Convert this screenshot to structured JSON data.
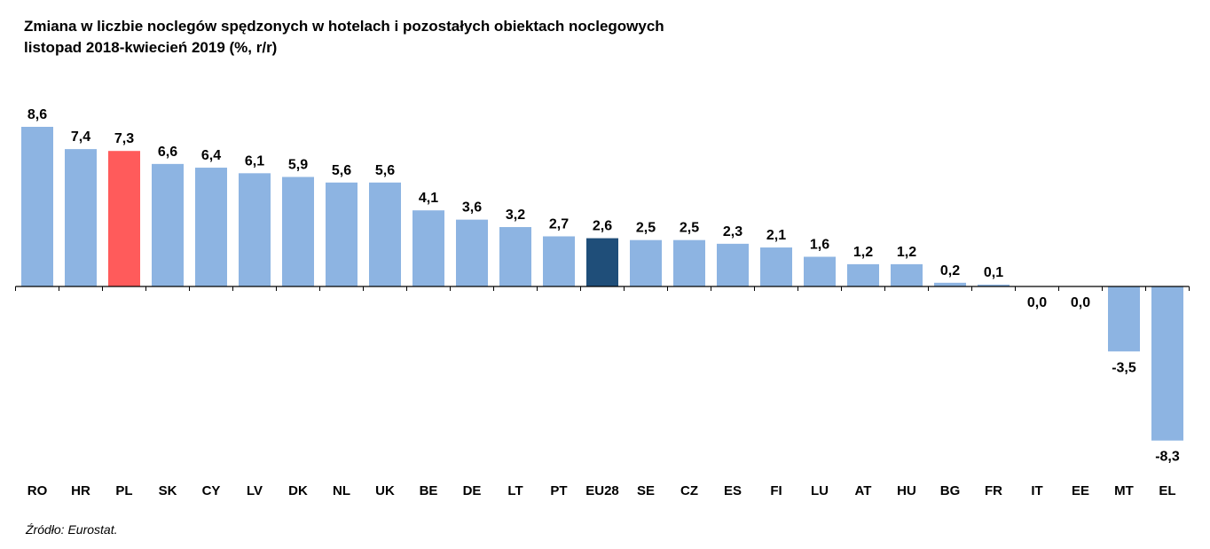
{
  "chart_data": {
    "type": "bar",
    "title": "Zmiana w liczbie noclegów spędzonych w hotelach i pozostałych obiektach noclegowych",
    "subtitle": "listopad 2018-kwiecień 2019 (%, r/r)",
    "categories": [
      "RO",
      "HR",
      "PL",
      "SK",
      "CY",
      "LV",
      "DK",
      "NL",
      "UK",
      "BE",
      "DE",
      "LT",
      "PT",
      "EU28",
      "SE",
      "CZ",
      "ES",
      "FI",
      "LU",
      "AT",
      "HU",
      "BG",
      "FR",
      "IT",
      "EE",
      "MT",
      "EL"
    ],
    "values": [
      8.6,
      7.4,
      7.3,
      6.6,
      6.4,
      6.1,
      5.9,
      5.6,
      5.6,
      4.1,
      3.6,
      3.2,
      2.7,
      2.6,
      2.5,
      2.5,
      2.3,
      2.1,
      1.6,
      1.2,
      1.2,
      0.2,
      0.1,
      0.0,
      0.0,
      -3.5,
      -8.3
    ],
    "data_labels": [
      "8,6",
      "7,4",
      "7,3",
      "6,6",
      "6,4",
      "6,1",
      "5,9",
      "5,6",
      "5,6",
      "4,1",
      "3,6",
      "3,2",
      "2,7",
      "2,6",
      "2,5",
      "2,5",
      "2,3",
      "2,1",
      "1,6",
      "1,2",
      "1,2",
      "0,2",
      "0,1",
      "0,0",
      "0,0",
      "-3,5",
      "-8,3"
    ],
    "colors": {
      "default": "#8DB4E2",
      "PL": "#FF5B5B",
      "EU28": "#1F4E79"
    },
    "xlabel": "",
    "ylabel": "",
    "ylim": [
      -8.6,
      8.6
    ],
    "grid": false,
    "legend": "none",
    "source": "Źródło: Eurostat."
  }
}
